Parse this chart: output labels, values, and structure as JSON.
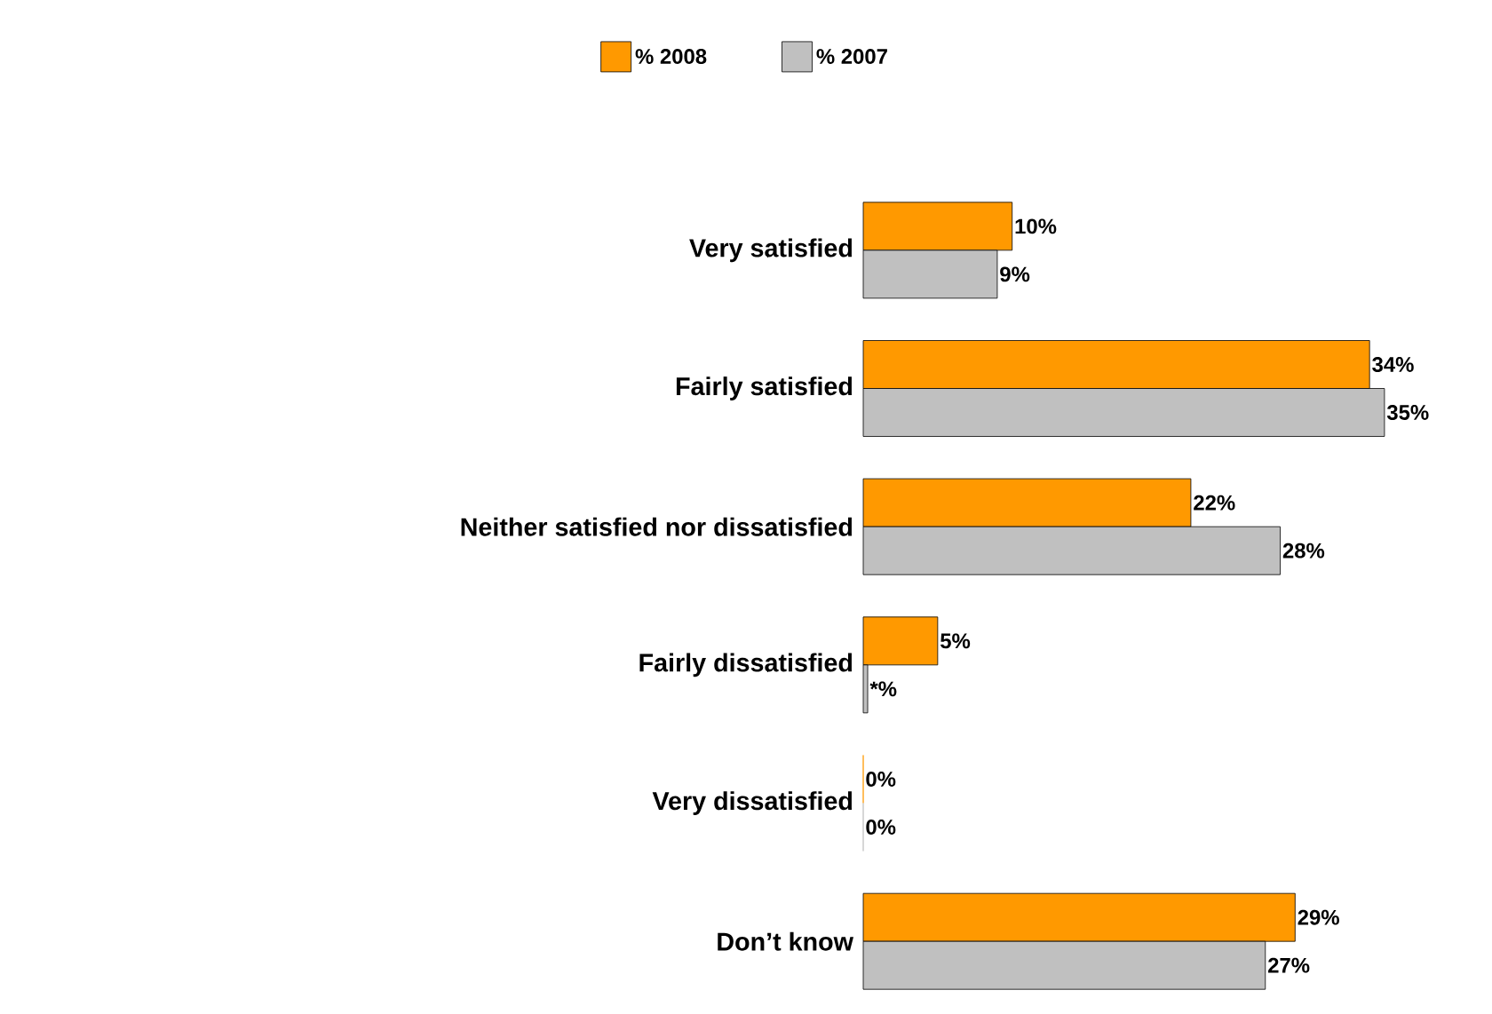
{
  "chart_data": {
    "type": "bar",
    "orientation": "horizontal",
    "legend": "top",
    "categories": [
      "Very satisfied",
      "Fairly satisfied",
      "Neither satisfied nor dissatisfied",
      "Fairly dissatisfied",
      "Very dissatisfied",
      "Don’t know"
    ],
    "series": [
      {
        "name": "% 2008",
        "color": "#ff9900",
        "values": [
          10,
          34,
          22,
          5,
          0,
          29
        ],
        "value_labels": [
          "10%",
          "34%",
          "22%",
          "5%",
          "0%",
          "29%"
        ]
      },
      {
        "name": "% 2007",
        "color": "#c0c0c0",
        "values": [
          9,
          35,
          28,
          0.3,
          0,
          27
        ],
        "value_labels": [
          "9%",
          "35%",
          "28%",
          "*%",
          "0%",
          "27%"
        ]
      }
    ]
  }
}
